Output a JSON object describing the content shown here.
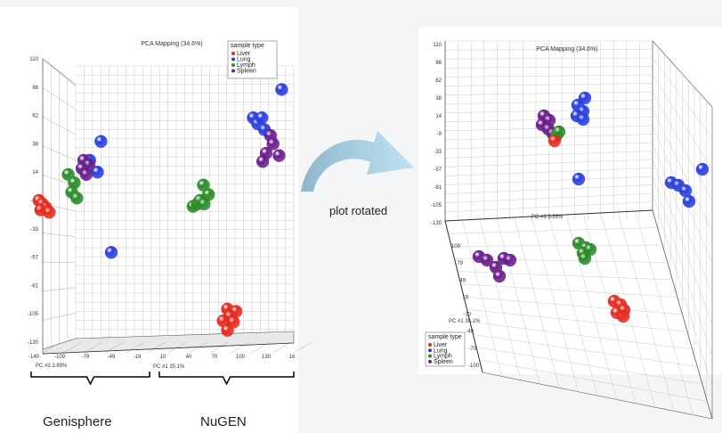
{
  "chart_data": [
    {
      "type": "scatter",
      "view": "front",
      "title": "PCA Mapping (34.6%)",
      "legend": {
        "title": "sample type",
        "placement": "top-right",
        "entries": [
          {
            "name": "Liver",
            "color": "#e52b1f"
          },
          {
            "name": "Lung",
            "color": "#2a3fe0"
          },
          {
            "name": "Lymph",
            "color": "#2c8c2a"
          },
          {
            "name": "Spleen",
            "color": "#6a1f8c"
          }
        ]
      },
      "y_ticks": [
        "110",
        "86",
        "62",
        "38",
        "14",
        "-10",
        "-33",
        "-57",
        "-81",
        "-105",
        "-130"
      ],
      "x_ticks": [
        "-140",
        "-109",
        "-79",
        "-49",
        "-19",
        "10",
        "40",
        "70",
        "100",
        "130",
        "16"
      ],
      "xlabel": "PC #1 35.1%",
      "zlabel": "PC #3 3.89%",
      "grid": true,
      "series": [
        {
          "name": "Liver",
          "color": "#e52b1f",
          "points": [
            [
              -134,
              -10
            ],
            [
              -130,
              -13
            ],
            [
              -126,
              -16
            ],
            [
              -132,
              -18
            ],
            [
              -122,
              -20
            ],
            [
              85,
              -102
            ],
            [
              95,
              -104
            ],
            [
              88,
              -108
            ],
            [
              80,
              -112
            ],
            [
              92,
              -113
            ],
            [
              85,
              -120
            ]
          ]
        },
        {
          "name": "Lung",
          "color": "#2a3fe0",
          "points": [
            [
              -62,
              40
            ],
            [
              -75,
              24
            ],
            [
              -66,
              14
            ],
            [
              -50,
              -54
            ],
            [
              115,
              60
            ],
            [
              120,
              55
            ],
            [
              125,
              60
            ],
            [
              128,
              50
            ],
            [
              148,
              84
            ]
          ]
        },
        {
          "name": "Lymph",
          "color": "#2c8c2a",
          "points": [
            [
              -100,
              12
            ],
            [
              -93,
              5
            ],
            [
              -96,
              -3
            ],
            [
              -90,
              -8
            ],
            [
              45,
              -15
            ],
            [
              50,
              -13
            ],
            [
              53,
              -10
            ],
            [
              58,
              -13
            ],
            [
              63,
              -5
            ],
            [
              57,
              3
            ]
          ]
        },
        {
          "name": "Spleen",
          "color": "#6a1f8c",
          "points": [
            [
              -82,
              24
            ],
            [
              -76,
              20
            ],
            [
              -84,
              17
            ],
            [
              -79,
              12
            ],
            [
              135,
              45
            ],
            [
              138,
              38
            ],
            [
              130,
              30
            ],
            [
              145,
              28
            ],
            [
              126,
              23
            ]
          ]
        }
      ]
    },
    {
      "type": "scatter",
      "view": "rotated",
      "title": "PCA Mapping (34.6%)",
      "legend": {
        "title": "sample type",
        "placement": "bottom-left",
        "entries": [
          {
            "name": "Liver",
            "color": "#e52b1f"
          },
          {
            "name": "Lung",
            "color": "#2a3fe0"
          },
          {
            "name": "Lymph",
            "color": "#2c8c2a"
          },
          {
            "name": "Spleen",
            "color": "#6a1f8c"
          }
        ]
      },
      "y_ticks": [
        "110",
        "86",
        "62",
        "38",
        "14",
        "-9",
        "-33",
        "-57",
        "-81",
        "-105",
        "-130"
      ],
      "z_ticks": [
        "109",
        "79",
        "49",
        "19",
        "-10",
        "-40",
        "-70",
        "-100"
      ],
      "xlabel": "PC #1 35.1%",
      "zlabel": "PC #3 3.89%",
      "grid": true
    }
  ],
  "annotation": {
    "arrow_caption": "plot rotated",
    "group_left": "Genisphere",
    "group_right": "NuGEN"
  }
}
